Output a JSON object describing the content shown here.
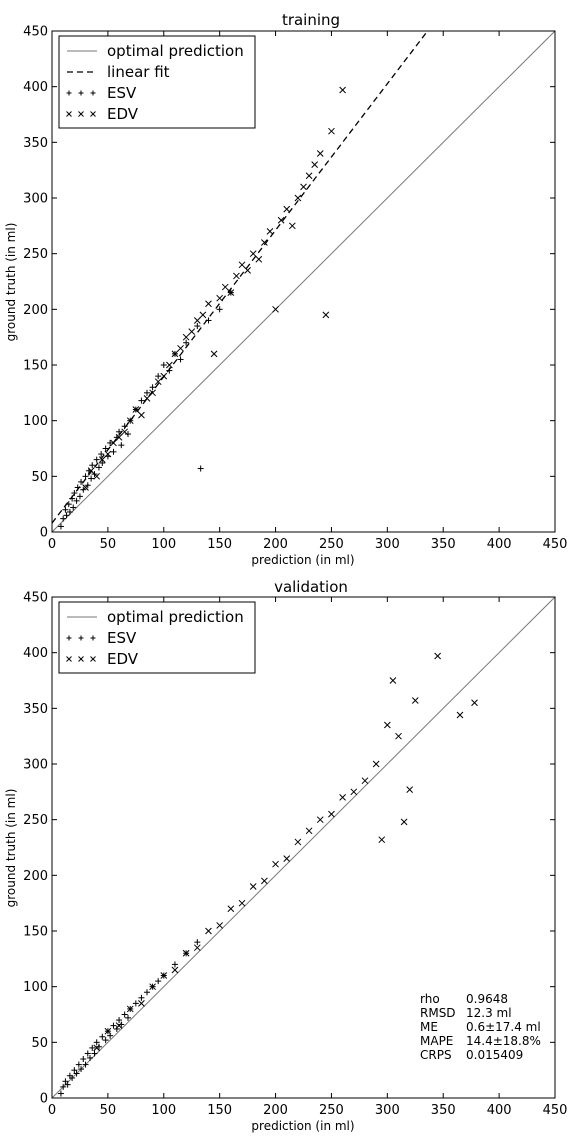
{
  "chart_data": [
    {
      "type": "scatter",
      "title": "training",
      "xlabel": "prediction (in ml)",
      "ylabel": "ground truth (in ml)",
      "xlim": [
        0,
        450
      ],
      "ylim": [
        0,
        450
      ],
      "xticks": [
        "0",
        "50",
        "100",
        "150",
        "200",
        "250",
        "300",
        "350",
        "400",
        "450"
      ],
      "yticks": [
        "0",
        "50",
        "100",
        "150",
        "200",
        "250",
        "300",
        "350",
        "400",
        "450"
      ],
      "grid": false,
      "legend_position": "top-left",
      "lines": [
        {
          "name": "optimal prediction",
          "style": "solid",
          "color": "#777777",
          "x": [
            0,
            450
          ],
          "y": [
            0,
            450
          ]
        },
        {
          "name": "linear fit",
          "style": "dashed",
          "color": "#000000",
          "x": [
            0,
            336
          ],
          "y": [
            8,
            450
          ]
        }
      ],
      "series": [
        {
          "name": "ESV",
          "marker": "+",
          "x": [
            8,
            10,
            12,
            13,
            15,
            16,
            18,
            19,
            20,
            22,
            23,
            25,
            26,
            28,
            30,
            32,
            33,
            35,
            36,
            38,
            40,
            42,
            44,
            45,
            48,
            50,
            52,
            55,
            58,
            60,
            62,
            65,
            68,
            70,
            75,
            80,
            85,
            90,
            95,
            100,
            105,
            110,
            115,
            120,
            130,
            133,
            140,
            150,
            160
          ],
          "y": [
            5,
            12,
            20,
            15,
            25,
            18,
            30,
            22,
            35,
            28,
            40,
            32,
            45,
            38,
            50,
            42,
            55,
            48,
            60,
            52,
            65,
            58,
            70,
            62,
            75,
            68,
            80,
            72,
            85,
            90,
            78,
            95,
            88,
            100,
            110,
            118,
            125,
            130,
            140,
            150,
            145,
            160,
            155,
            170,
            185,
            57,
            190,
            200,
            215
          ]
        },
        {
          "name": "EDV",
          "marker": "x",
          "x": [
            30,
            35,
            40,
            45,
            50,
            55,
            60,
            65,
            70,
            75,
            80,
            85,
            90,
            95,
            100,
            105,
            110,
            115,
            120,
            125,
            130,
            135,
            140,
            145,
            150,
            155,
            160,
            165,
            170,
            175,
            180,
            185,
            190,
            195,
            200,
            205,
            210,
            215,
            220,
            225,
            230,
            235,
            240,
            245,
            250,
            260
          ],
          "y": [
            40,
            55,
            50,
            65,
            70,
            80,
            85,
            90,
            100,
            110,
            105,
            120,
            125,
            135,
            140,
            150,
            160,
            165,
            175,
            180,
            190,
            195,
            205,
            160,
            210,
            220,
            215,
            230,
            240,
            235,
            250,
            245,
            260,
            270,
            200,
            280,
            290,
            275,
            300,
            310,
            320,
            330,
            340,
            195,
            360,
            397
          ]
        }
      ]
    },
    {
      "type": "scatter",
      "title": "validation",
      "xlabel": "prediction (in ml)",
      "ylabel": "ground truth (in ml)",
      "xlim": [
        0,
        450
      ],
      "ylim": [
        0,
        450
      ],
      "xticks": [
        "0",
        "50",
        "100",
        "150",
        "200",
        "250",
        "300",
        "350",
        "400",
        "450"
      ],
      "yticks": [
        "0",
        "50",
        "100",
        "150",
        "200",
        "250",
        "300",
        "350",
        "400",
        "450"
      ],
      "grid": false,
      "legend_position": "top-left",
      "lines": [
        {
          "name": "optimal prediction",
          "style": "solid",
          "color": "#777777",
          "x": [
            0,
            450
          ],
          "y": [
            0,
            450
          ]
        }
      ],
      "series": [
        {
          "name": "ESV",
          "marker": "+",
          "x": [
            8,
            10,
            12,
            14,
            16,
            18,
            20,
            22,
            24,
            26,
            28,
            30,
            32,
            34,
            36,
            38,
            40,
            42,
            45,
            48,
            50,
            52,
            55,
            58,
            60,
            62,
            65,
            68,
            70,
            75,
            80,
            85,
            90,
            95,
            100,
            110,
            120,
            130
          ],
          "y": [
            4,
            10,
            15,
            12,
            20,
            18,
            25,
            22,
            30,
            26,
            35,
            30,
            40,
            36,
            45,
            40,
            50,
            46,
            55,
            52,
            60,
            56,
            65,
            62,
            70,
            66,
            75,
            72,
            80,
            85,
            90,
            95,
            100,
            105,
            110,
            120,
            130,
            140
          ]
        },
        {
          "name": "EDV",
          "marker": "x",
          "x": [
            40,
            50,
            60,
            70,
            80,
            90,
            100,
            110,
            120,
            130,
            140,
            150,
            160,
            170,
            180,
            190,
            200,
            210,
            220,
            230,
            240,
            250,
            260,
            270,
            280,
            290,
            295,
            300,
            305,
            310,
            315,
            320,
            325,
            345,
            365,
            378
          ],
          "y": [
            45,
            60,
            65,
            80,
            85,
            100,
            110,
            115,
            130,
            135,
            150,
            155,
            170,
            175,
            190,
            195,
            210,
            215,
            230,
            240,
            250,
            255,
            270,
            275,
            285,
            300,
            232,
            335,
            375,
            325,
            248,
            277,
            357,
            397,
            344,
            355
          ]
        }
      ],
      "annotations": [
        {
          "label": "rho",
          "value": "0.9648"
        },
        {
          "label": "RMSD",
          "value": "12.3 ml"
        },
        {
          "label": "ME",
          "value": "0.6±17.4 ml"
        },
        {
          "label": "MAPE",
          "value": "14.4±18.8%"
        },
        {
          "label": "CRPS",
          "value": "0.015409"
        }
      ]
    }
  ]
}
